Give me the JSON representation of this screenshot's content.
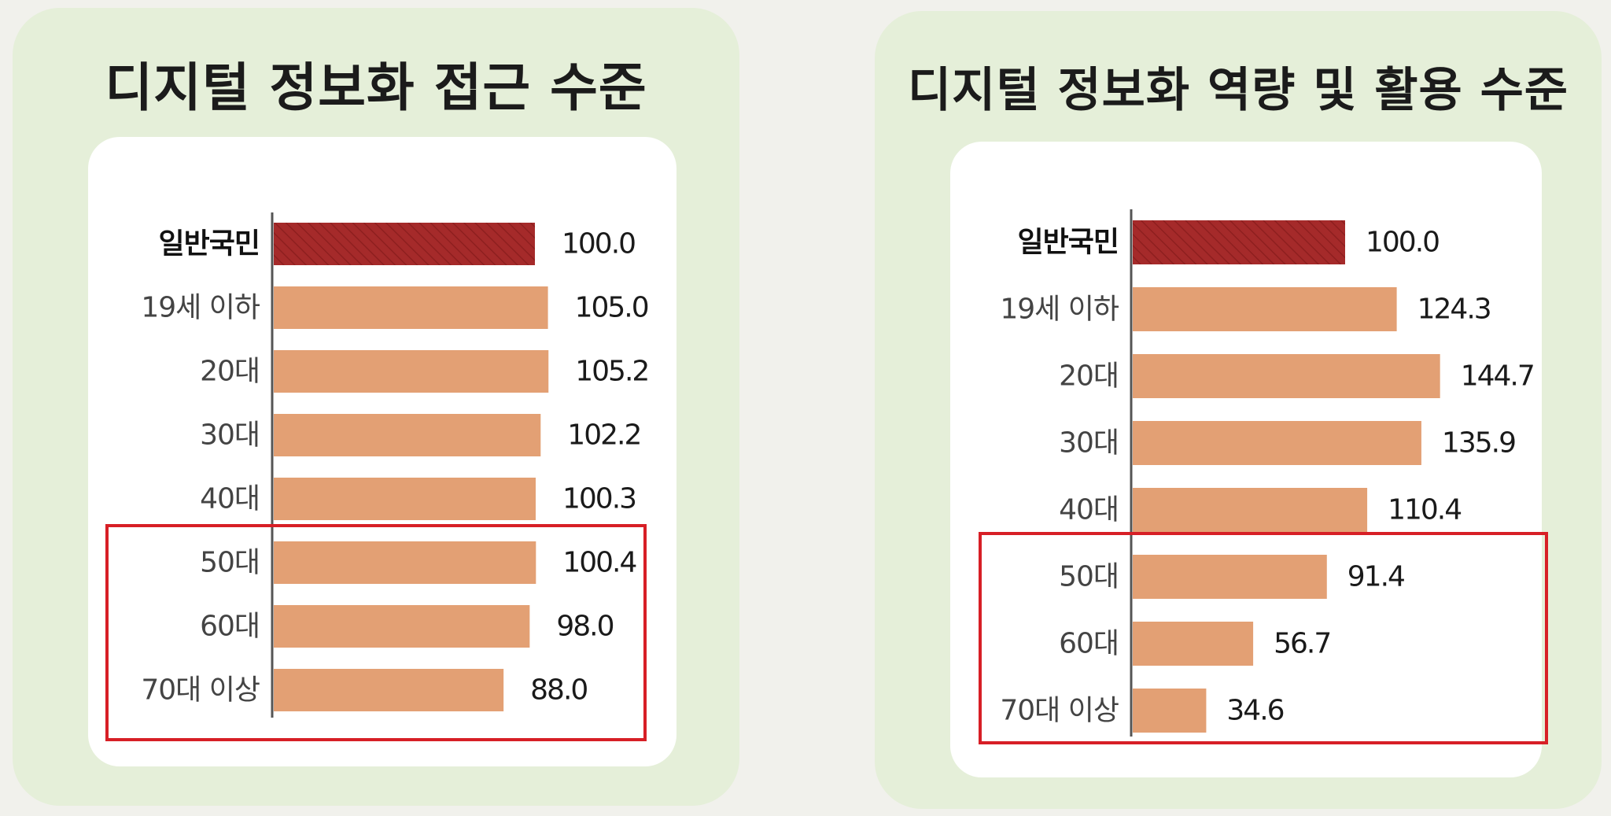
{
  "colors": {
    "highlight_bar": "#a52a2a",
    "bar": "#e3a074",
    "axis": "#555555",
    "frame": "#d71f26"
  },
  "chart_data": [
    {
      "type": "bar",
      "orientation": "horizontal",
      "title": "디지털 정보화 접근 수준",
      "categories": [
        "일반국민",
        "19세 이하",
        "20대",
        "30대",
        "40대",
        "50대",
        "60대",
        "70대 이상"
      ],
      "values": [
        100.0,
        105.0,
        105.2,
        102.2,
        100.3,
        100.4,
        98.0,
        88.0
      ],
      "labels": [
        "100.0",
        "105.0",
        "105.2",
        "102.2",
        "100.3",
        "100.4",
        "98.0",
        "88.0"
      ],
      "reference_category": "일반국민",
      "highlighted_categories": [
        "50대",
        "60대",
        "70대 이상"
      ],
      "grid": false,
      "xlim": [
        0,
        110
      ]
    },
    {
      "type": "bar",
      "orientation": "horizontal",
      "title": "디지털 정보화 역량 및 활용 수준",
      "categories": [
        "일반국민",
        "19세 이하",
        "20대",
        "30대",
        "40대",
        "50대",
        "60대",
        "70대 이상"
      ],
      "values": [
        100.0,
        124.3,
        144.7,
        135.9,
        110.4,
        91.4,
        56.7,
        34.6
      ],
      "labels": [
        "100.0",
        "124.3",
        "144.7",
        "135.9",
        "110.4",
        "91.4",
        "56.7",
        "34.6"
      ],
      "reference_category": "일반국민",
      "highlighted_categories": [
        "50대",
        "60대",
        "70대 이상"
      ],
      "grid": false,
      "xlim": [
        0,
        150
      ]
    }
  ]
}
